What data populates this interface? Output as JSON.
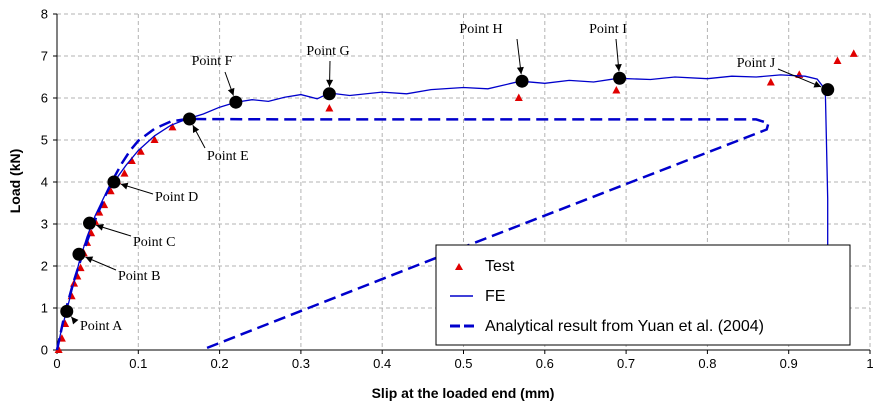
{
  "chart_data": {
    "type": "line",
    "xlabel": "Slip at the loaded end (mm)",
    "ylabel": "Load (kN)",
    "xlim": [
      0,
      1
    ],
    "ylim": [
      0,
      8
    ],
    "x_ticks": [
      "0",
      "0.1",
      "0.2",
      "0.3",
      "0.4",
      "0.5",
      "0.6",
      "0.7",
      "0.8",
      "0.9",
      "1"
    ],
    "y_ticks": [
      "0",
      "1",
      "2",
      "3",
      "4",
      "5",
      "6",
      "7",
      "8"
    ],
    "grid": "dashed",
    "legend_position": "bottom-right",
    "legend": [
      {
        "label": "Test",
        "style": "triangle-marker",
        "color": "#e00000"
      },
      {
        "label": "FE",
        "style": "solid-line",
        "color": "#0000cc"
      },
      {
        "label": "Analytical result from Yuan et al. (2004)",
        "style": "dashed-line",
        "color": "#0000cc"
      }
    ],
    "series": [
      {
        "name": "Test",
        "kind": "markers",
        "color": "#e00000",
        "points": [
          [
            0.002,
            0.0
          ],
          [
            0.006,
            0.27
          ],
          [
            0.01,
            0.62
          ],
          [
            0.014,
            0.95
          ],
          [
            0.018,
            1.28
          ],
          [
            0.021,
            1.58
          ],
          [
            0.025,
            1.75
          ],
          [
            0.029,
            1.95
          ],
          [
            0.033,
            2.3
          ],
          [
            0.037,
            2.55
          ],
          [
            0.042,
            2.78
          ],
          [
            0.047,
            3.05
          ],
          [
            0.052,
            3.27
          ],
          [
            0.058,
            3.45
          ],
          [
            0.066,
            3.78
          ],
          [
            0.074,
            4.02
          ],
          [
            0.083,
            4.2
          ],
          [
            0.092,
            4.5
          ],
          [
            0.103,
            4.72
          ],
          [
            0.12,
            5.0
          ],
          [
            0.142,
            5.3
          ],
          [
            0.335,
            5.75
          ],
          [
            0.568,
            6.0
          ],
          [
            0.688,
            6.18
          ],
          [
            0.878,
            6.37
          ],
          [
            0.913,
            6.55
          ],
          [
            0.96,
            6.88
          ],
          [
            0.98,
            7.05
          ]
        ]
      },
      {
        "name": "FE",
        "kind": "solid-line",
        "color": "#0000cc",
        "points": [
          [
            0,
            0
          ],
          [
            0.005,
            0.45
          ],
          [
            0.012,
            0.95
          ],
          [
            0.02,
            1.55
          ],
          [
            0.028,
            2.15
          ],
          [
            0.037,
            2.7
          ],
          [
            0.047,
            3.2
          ],
          [
            0.058,
            3.65
          ],
          [
            0.07,
            4.0
          ],
          [
            0.085,
            4.4
          ],
          [
            0.1,
            4.75
          ],
          [
            0.12,
            5.1
          ],
          [
            0.14,
            5.35
          ],
          [
            0.16,
            5.5
          ],
          [
            0.18,
            5.62
          ],
          [
            0.2,
            5.78
          ],
          [
            0.22,
            5.9
          ],
          [
            0.24,
            5.96
          ],
          [
            0.26,
            5.92
          ],
          [
            0.28,
            6.02
          ],
          [
            0.3,
            6.08
          ],
          [
            0.32,
            5.98
          ],
          [
            0.335,
            6.12
          ],
          [
            0.36,
            6.06
          ],
          [
            0.4,
            6.14
          ],
          [
            0.43,
            6.1
          ],
          [
            0.46,
            6.2
          ],
          [
            0.5,
            6.25
          ],
          [
            0.53,
            6.22
          ],
          [
            0.57,
            6.4
          ],
          [
            0.6,
            6.35
          ],
          [
            0.63,
            6.42
          ],
          [
            0.66,
            6.38
          ],
          [
            0.69,
            6.47
          ],
          [
            0.73,
            6.44
          ],
          [
            0.76,
            6.5
          ],
          [
            0.8,
            6.46
          ],
          [
            0.83,
            6.52
          ],
          [
            0.86,
            6.5
          ],
          [
            0.89,
            6.55
          ],
          [
            0.92,
            6.52
          ],
          [
            0.935,
            6.45
          ],
          [
            0.945,
            6.2
          ],
          [
            0.948,
            3.6
          ],
          [
            0.948,
            2.45
          ]
        ]
      },
      {
        "name": "Analytical result from Yuan et al. (2004)",
        "kind": "dashed-line",
        "color": "#0000cc",
        "points": [
          [
            0,
            0
          ],
          [
            0.01,
            0.9
          ],
          [
            0.02,
            1.6
          ],
          [
            0.03,
            2.2
          ],
          [
            0.04,
            2.75
          ],
          [
            0.05,
            3.25
          ],
          [
            0.06,
            3.7
          ],
          [
            0.07,
            4.1
          ],
          [
            0.08,
            4.45
          ],
          [
            0.09,
            4.75
          ],
          [
            0.1,
            4.98
          ],
          [
            0.12,
            5.27
          ],
          [
            0.14,
            5.44
          ],
          [
            0.16,
            5.5
          ],
          [
            0.3,
            5.49
          ],
          [
            0.5,
            5.49
          ],
          [
            0.7,
            5.49
          ],
          [
            0.86,
            5.49
          ],
          [
            0.875,
            5.4
          ],
          [
            0.873,
            5.25
          ],
          [
            0.5,
            2.45
          ],
          [
            0.178,
            0.0
          ]
        ]
      }
    ],
    "key_points": [
      {
        "label": "Point A",
        "x": 0.012,
        "y": 0.92
      },
      {
        "label": "Point B",
        "x": 0.027,
        "y": 2.28
      },
      {
        "label": "Point C",
        "x": 0.04,
        "y": 3.02
      },
      {
        "label": "Point D",
        "x": 0.07,
        "y": 4.0
      },
      {
        "label": "Point E",
        "x": 0.163,
        "y": 5.5
      },
      {
        "label": "Point F",
        "x": 0.22,
        "y": 5.9
      },
      {
        "label": "Point G",
        "x": 0.335,
        "y": 6.1
      },
      {
        "label": "Point H",
        "x": 0.572,
        "y": 6.4
      },
      {
        "label": "Point I",
        "x": 0.692,
        "y": 6.47
      },
      {
        "label": "Point J",
        "x": 0.948,
        "y": 6.2
      }
    ]
  }
}
